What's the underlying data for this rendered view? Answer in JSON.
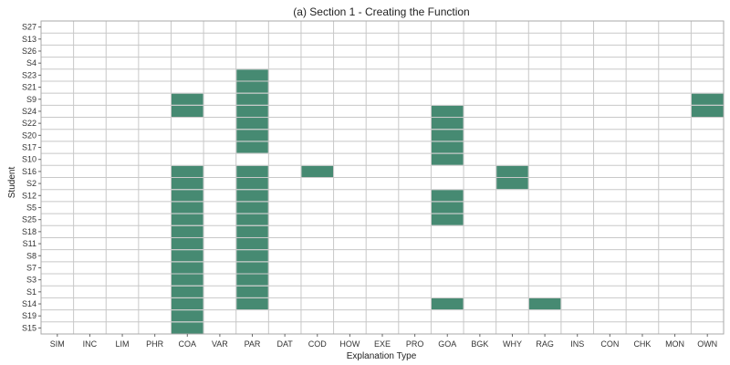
{
  "chart_data": {
    "type": "heatmap",
    "title": "(a) Section 1 - Creating the Function",
    "xlabel": "Explanation Type",
    "ylabel": "Student",
    "x_categories": [
      "SIM",
      "INC",
      "LIM",
      "PHR",
      "COA",
      "VAR",
      "PAR",
      "DAT",
      "COD",
      "HOW",
      "EXE",
      "PRO",
      "GOA",
      "BGK",
      "WHY",
      "RAG",
      "INS",
      "CON",
      "CHK",
      "MON",
      "OWN"
    ],
    "y_categories": [
      "S27",
      "S13",
      "S26",
      "S4",
      "S23",
      "S21",
      "S9",
      "S24",
      "S22",
      "S20",
      "S17",
      "S10",
      "S16",
      "S2",
      "S12",
      "S5",
      "S25",
      "S18",
      "S11",
      "S8",
      "S7",
      "S3",
      "S1",
      "S14",
      "S19",
      "S15"
    ],
    "filled_cells": {
      "S23": [
        "PAR"
      ],
      "S21": [
        "PAR"
      ],
      "S9": [
        "COA",
        "PAR",
        "OWN"
      ],
      "S24": [
        "COA",
        "PAR",
        "GOA",
        "OWN"
      ],
      "S22": [
        "PAR",
        "GOA"
      ],
      "S20": [
        "PAR",
        "GOA"
      ],
      "S17": [
        "PAR",
        "GOA"
      ],
      "S10": [
        "GOA"
      ],
      "S16": [
        "COA",
        "PAR",
        "COD",
        "WHY"
      ],
      "S2": [
        "COA",
        "PAR",
        "WHY"
      ],
      "S12": [
        "COA",
        "PAR",
        "GOA"
      ],
      "S5": [
        "COA",
        "PAR",
        "GOA"
      ],
      "S25": [
        "COA",
        "PAR",
        "GOA"
      ],
      "S18": [
        "COA",
        "PAR"
      ],
      "S11": [
        "COA",
        "PAR"
      ],
      "S8": [
        "COA",
        "PAR"
      ],
      "S7": [
        "COA",
        "PAR"
      ],
      "S3": [
        "COA",
        "PAR"
      ],
      "S1": [
        "COA",
        "PAR"
      ],
      "S14": [
        "COA",
        "PAR",
        "GOA",
        "RAG"
      ],
      "S19": [
        "COA"
      ],
      "S15": [
        "COA"
      ]
    },
    "fill_color": "#468a72",
    "grid": true,
    "legend": "none"
  }
}
